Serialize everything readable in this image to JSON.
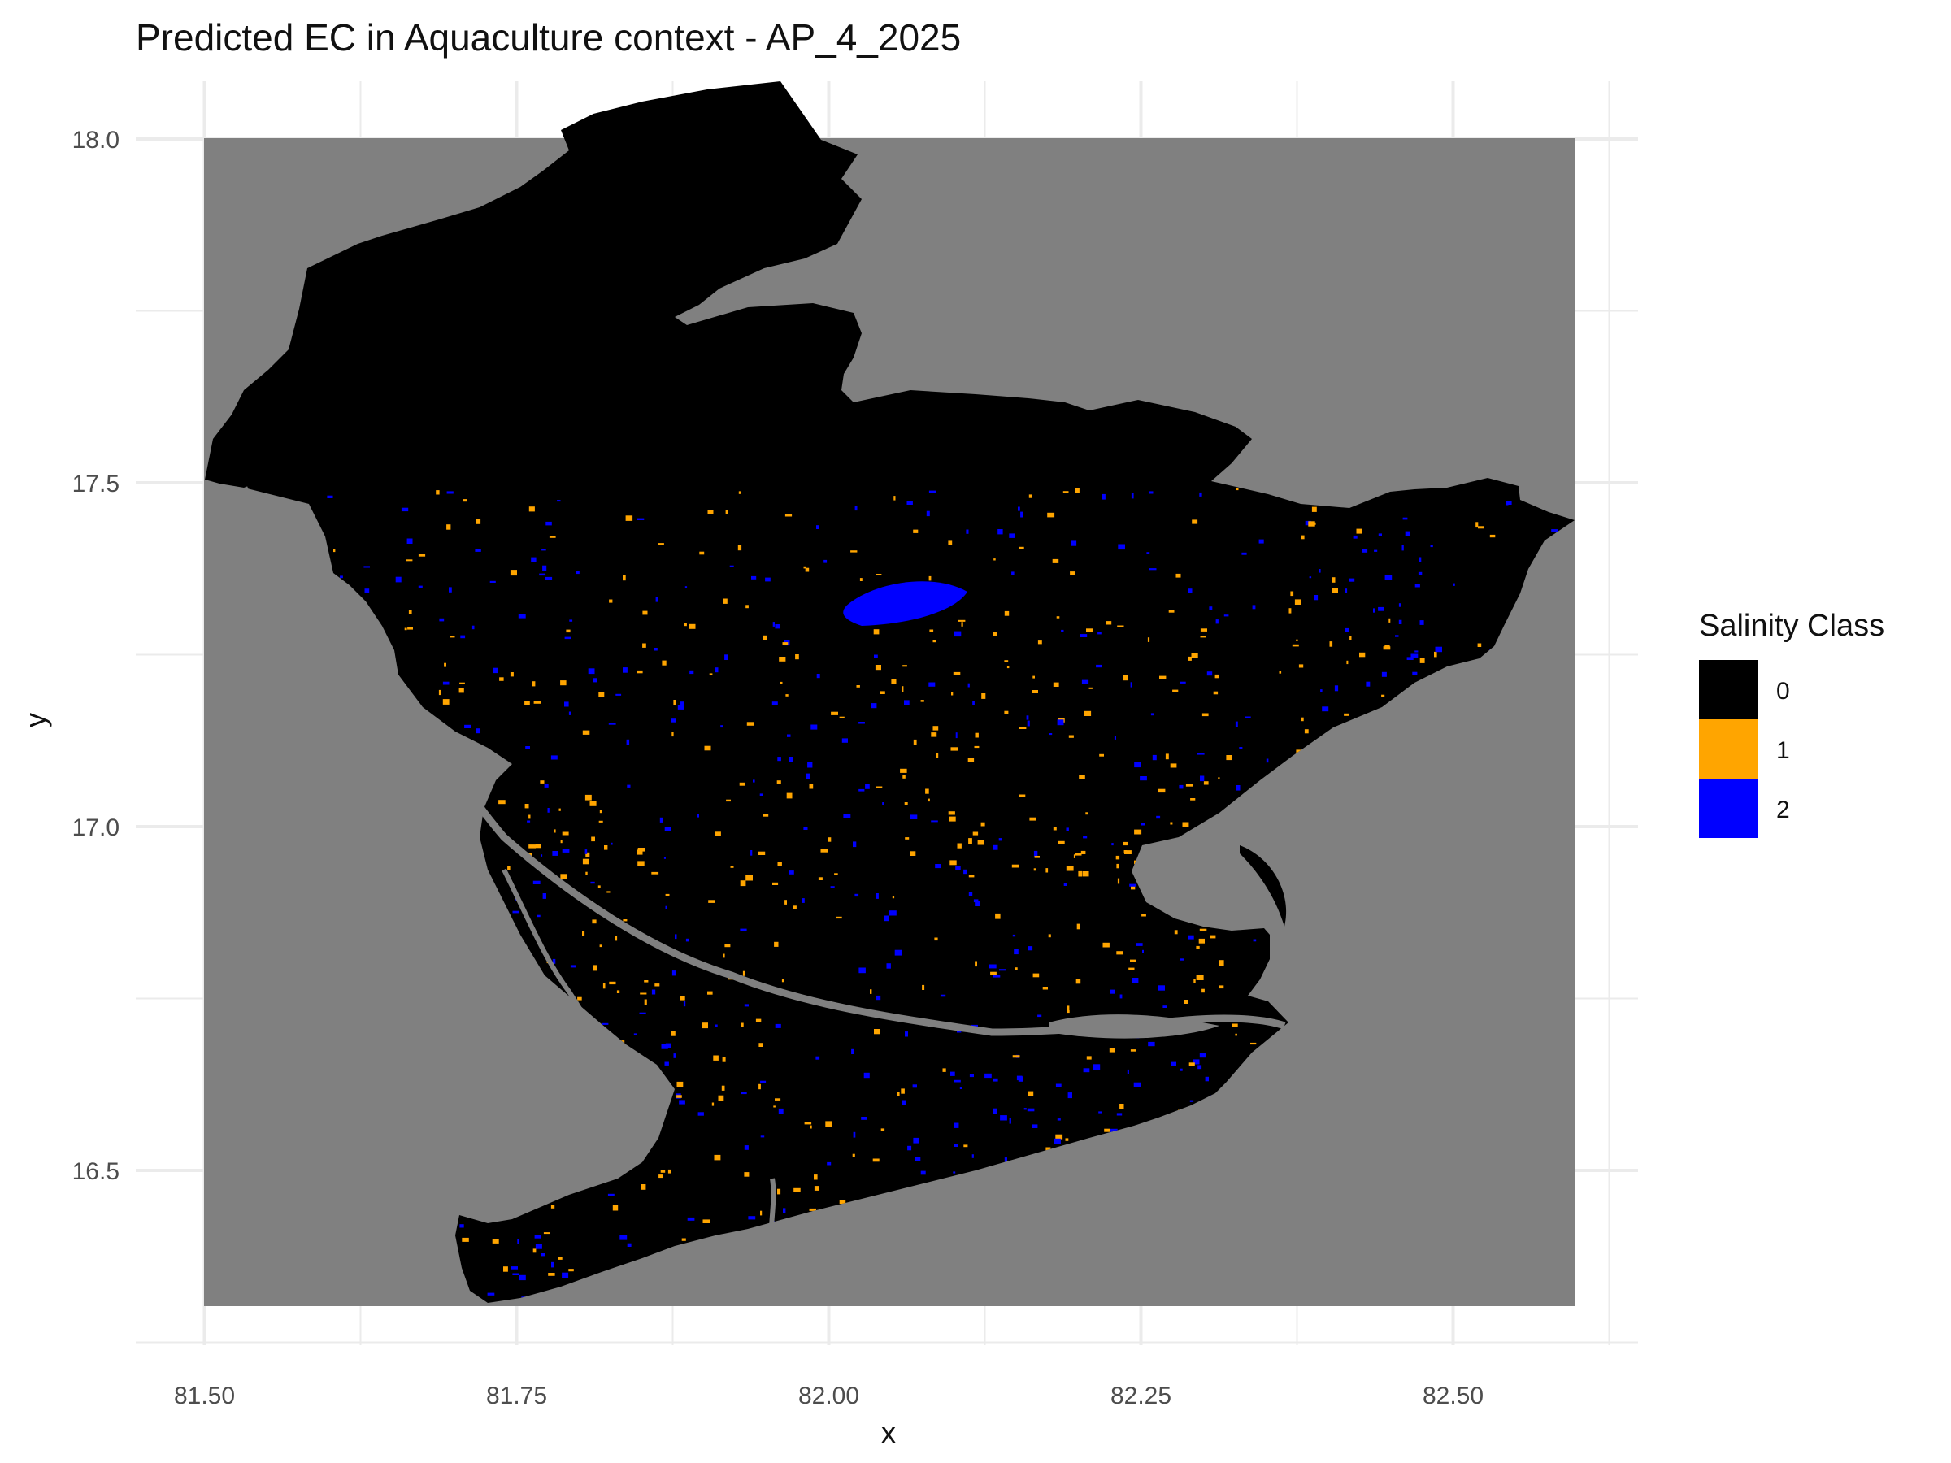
{
  "chart_data": {
    "type": "heatmap",
    "title": "Predicted EC in Aquaculture context - AP_4_2025",
    "xlabel": "x",
    "ylabel": "y",
    "xlim": [
      81.49,
      82.59
    ],
    "ylim": [
      16.3,
      18.0
    ],
    "x_ticks": [
      "81.50",
      "81.75",
      "82.00",
      "82.25",
      "82.50"
    ],
    "x_tick_values": [
      81.5,
      81.75,
      82.0,
      82.25,
      82.5
    ],
    "y_ticks": [
      "16.5",
      "17.0",
      "17.5",
      "18.0"
    ],
    "y_tick_values": [
      16.5,
      17.0,
      17.5,
      18.0
    ],
    "grid": true,
    "no_data_color": "#808080",
    "legend": {
      "title": "Salinity Class",
      "placement": "right",
      "items": [
        {
          "label": "0",
          "color": "#000000"
        },
        {
          "label": "1",
          "color": "#FFA500"
        },
        {
          "label": "2",
          "color": "#0000FF"
        }
      ]
    }
  }
}
